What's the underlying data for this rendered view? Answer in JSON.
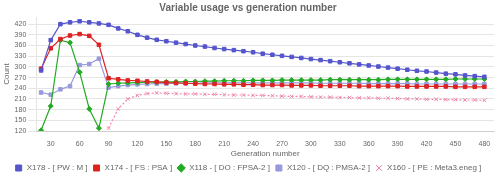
{
  "chart_data": {
    "type": "line",
    "title": "Variable usage vs generation number",
    "xlabel": "Generation number",
    "ylabel": "Count",
    "xlim": [
      15,
      490
    ],
    "ylim": [
      120,
      440
    ],
    "xticks": [
      30,
      60,
      90,
      120,
      150,
      180,
      210,
      240,
      270,
      300,
      330,
      360,
      390,
      420,
      450,
      480
    ],
    "yticks": [
      120,
      150,
      180,
      210,
      240,
      270,
      300,
      330,
      360,
      390,
      420
    ],
    "grid": "y",
    "legend": "bottom",
    "x": [
      20,
      30,
      40,
      50,
      60,
      70,
      80,
      90,
      100,
      110,
      120,
      130,
      140,
      150,
      160,
      170,
      180,
      190,
      200,
      210,
      220,
      230,
      240,
      250,
      260,
      270,
      280,
      290,
      300,
      310,
      320,
      330,
      340,
      350,
      360,
      370,
      380,
      390,
      400,
      410,
      420,
      430,
      440,
      450,
      460,
      470,
      480
    ],
    "series": [
      {
        "name": "X178 - [ PW : M ]",
        "color": "#5555cc",
        "marker": "square",
        "line_style": "solid",
        "values": [
          290,
          375,
          420,
          425,
          428,
          425,
          422,
          418,
          408,
          400,
          390,
          382,
          376,
          372,
          368,
          364,
          360,
          357,
          353,
          350,
          347,
          344,
          341,
          337,
          334,
          331,
          328,
          325,
          322,
          319,
          316,
          313,
          310,
          307,
          304,
          301,
          298,
          295,
          292,
          289,
          287,
          284,
          281,
          279,
          276,
          274,
          272
        ]
      },
      {
        "name": "X174 - [ FS : PSA ]",
        "color": "#dd2222",
        "marker": "square",
        "line_style": "solid",
        "values": [
          295,
          352,
          378,
          388,
          392,
          387,
          362,
          268,
          265,
          262,
          261,
          259,
          258,
          256,
          255,
          254,
          253,
          252,
          252,
          251,
          251,
          250,
          250,
          249,
          249,
          249,
          248,
          248,
          248,
          247,
          247,
          247,
          247,
          246,
          246,
          246,
          246,
          246,
          245,
          245,
          245,
          245,
          245,
          244,
          244,
          244,
          244
        ]
      },
      {
        "name": "X118 - [ DO : FPSA-2 ]",
        "color": "#22aa22",
        "marker": "diamond",
        "line_style": "solid",
        "values": [
          122,
          190,
          375,
          368,
          285,
          182,
          128,
          252,
          254,
          255,
          256,
          257,
          257,
          258,
          258,
          259,
          259,
          260,
          260,
          261,
          261,
          261,
          262,
          262,
          262,
          263,
          263,
          263,
          263,
          263,
          264,
          264,
          264,
          264,
          264,
          264,
          265,
          265,
          265,
          265,
          265,
          265,
          265,
          266,
          266,
          266,
          266
        ]
      },
      {
        "name": "X120 - [ DQ : PMSA-2 ]",
        "color": "#9999dd",
        "marker": "square",
        "line_style": "solid",
        "values": [
          228,
          222,
          237,
          246,
          305,
          308,
          323,
          242,
          246,
          249,
          251,
          252,
          253,
          253,
          254,
          254,
          254,
          255,
          255,
          255,
          255,
          255,
          255,
          255,
          255,
          255,
          255,
          255,
          255,
          254,
          254,
          254,
          254,
          254,
          253,
          253,
          253,
          253,
          253,
          252,
          252,
          252,
          252,
          252,
          252,
          252,
          252
        ]
      },
      {
        "name": "X160 - [ PE : Meta3.eneg ]",
        "color": "#ee88aa",
        "marker": "x",
        "line_style": "dotted",
        "values": [
          null,
          null,
          null,
          null,
          null,
          null,
          null,
          128,
          182,
          210,
          220,
          225,
          227,
          226,
          225,
          224,
          224,
          223,
          223,
          222,
          221,
          221,
          220,
          220,
          219,
          218,
          217,
          217,
          216,
          215,
          215,
          214,
          214,
          213,
          213,
          212,
          212,
          211,
          210,
          210,
          209,
          209,
          208,
          208,
          207,
          207,
          206
        ]
      }
    ]
  }
}
